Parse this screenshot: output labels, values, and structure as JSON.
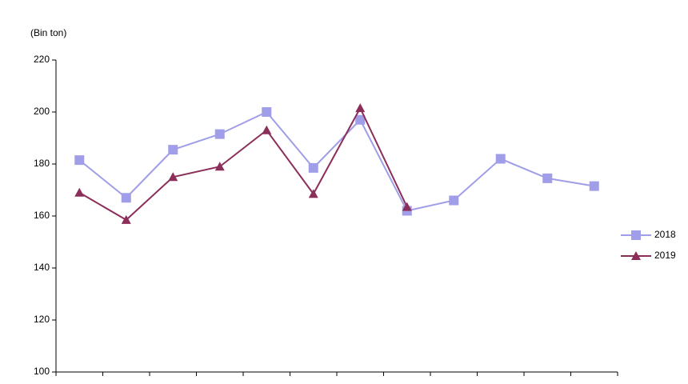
{
  "chart_data": {
    "type": "line",
    "y_unit_label": "(Bin ton)",
    "categories": [
      null,
      null,
      null,
      null,
      null,
      null,
      null,
      null,
      null,
      null,
      null,
      null
    ],
    "series": [
      {
        "name": "2018",
        "color": "#a09ee8",
        "marker": "square",
        "values": [
          181.5,
          167,
          185.5,
          191.5,
          200,
          178.5,
          197,
          162,
          166,
          182,
          174.5,
          171.5
        ]
      },
      {
        "name": "2019",
        "color": "#8b2e5a",
        "marker": "triangle",
        "values": [
          169,
          158.5,
          175,
          179,
          193,
          168.5,
          201.5,
          163.5,
          null,
          null,
          null,
          null
        ]
      }
    ],
    "ylim": [
      100,
      220
    ],
    "yticks": [
      100,
      120,
      140,
      160,
      180,
      200,
      220
    ],
    "grid": false,
    "legend": "right"
  }
}
